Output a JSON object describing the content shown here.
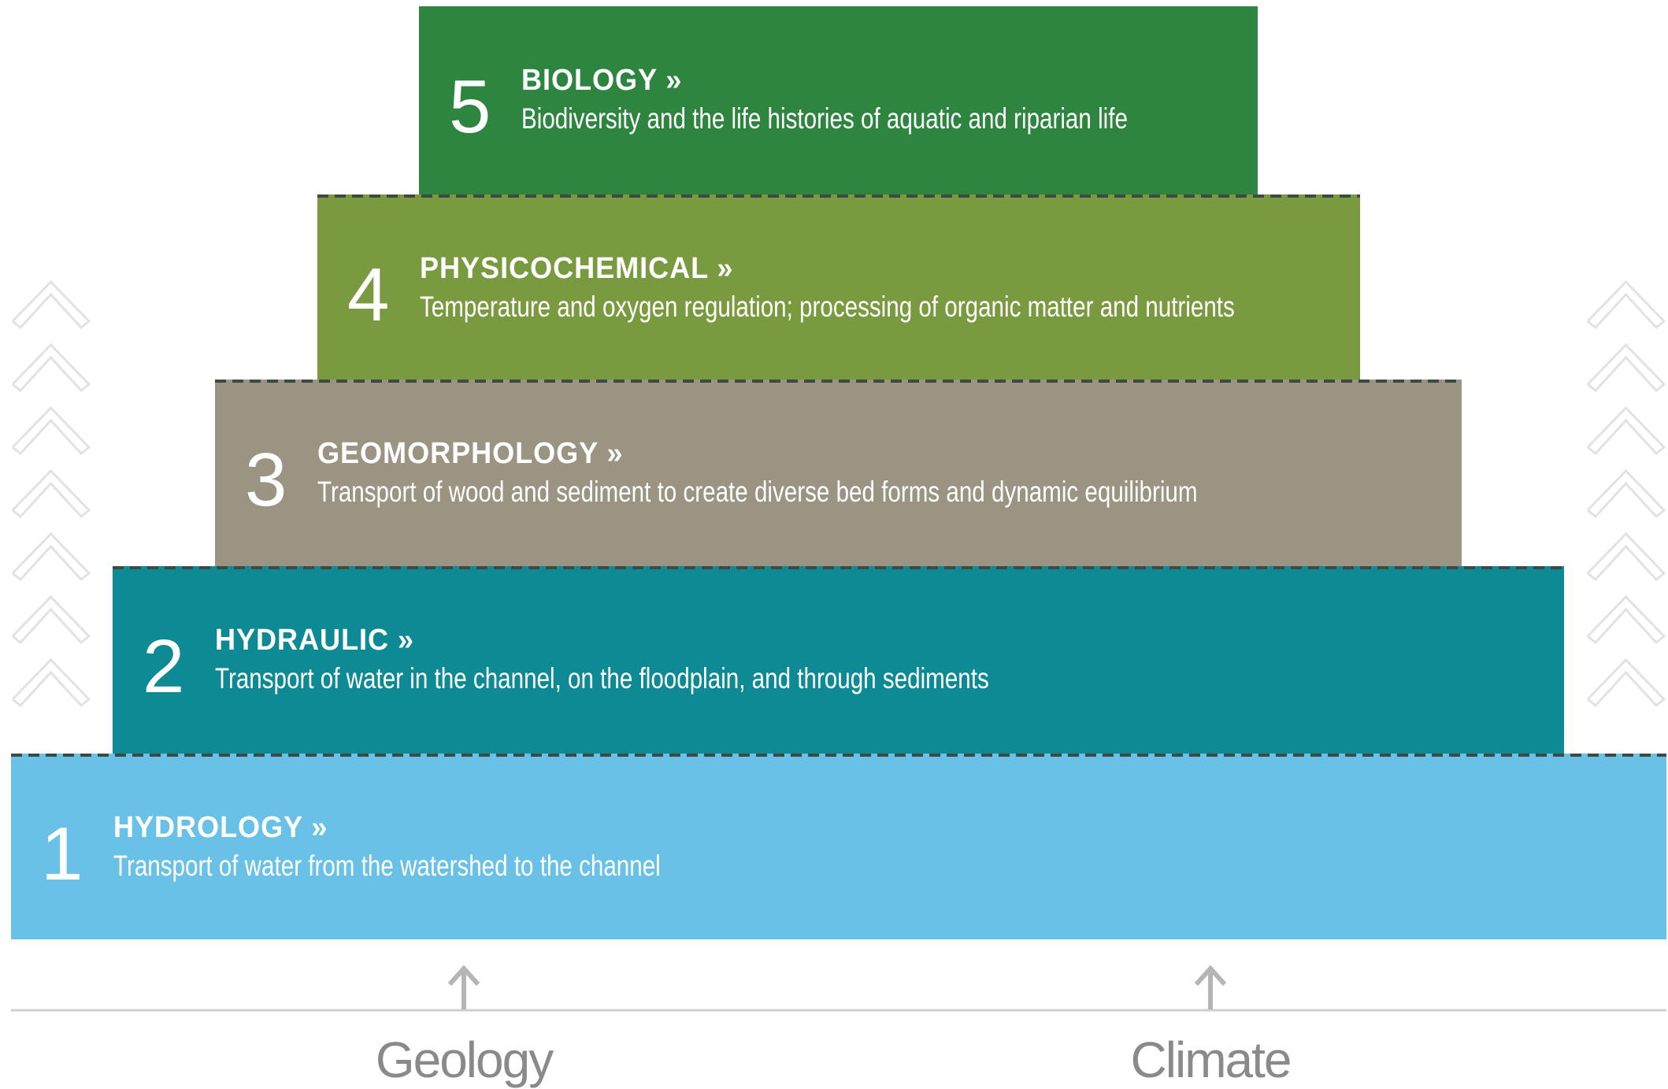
{
  "levels": [
    {
      "number": "1",
      "title": "HYDROLOGY »",
      "description": "Transport of water from the watershed to the channel"
    },
    {
      "number": "2",
      "title": "HYDRAULIC »",
      "description": "Transport of water in the channel, on the floodplain, and through sediments"
    },
    {
      "number": "3",
      "title": "GEOMORPHOLOGY »",
      "description": "Transport of wood and sediment to create diverse bed forms and dynamic equilibrium"
    },
    {
      "number": "4",
      "title": "PHYSICOCHEMICAL »",
      "description": "Temperature and oxygen regulation; processing of organic matter and nutrients"
    },
    {
      "number": "5",
      "title": "BIOLOGY »",
      "description": "Biodiversity and the life histories of aquatic and riparian life"
    }
  ],
  "drivers": [
    "Geology",
    "Climate"
  ]
}
